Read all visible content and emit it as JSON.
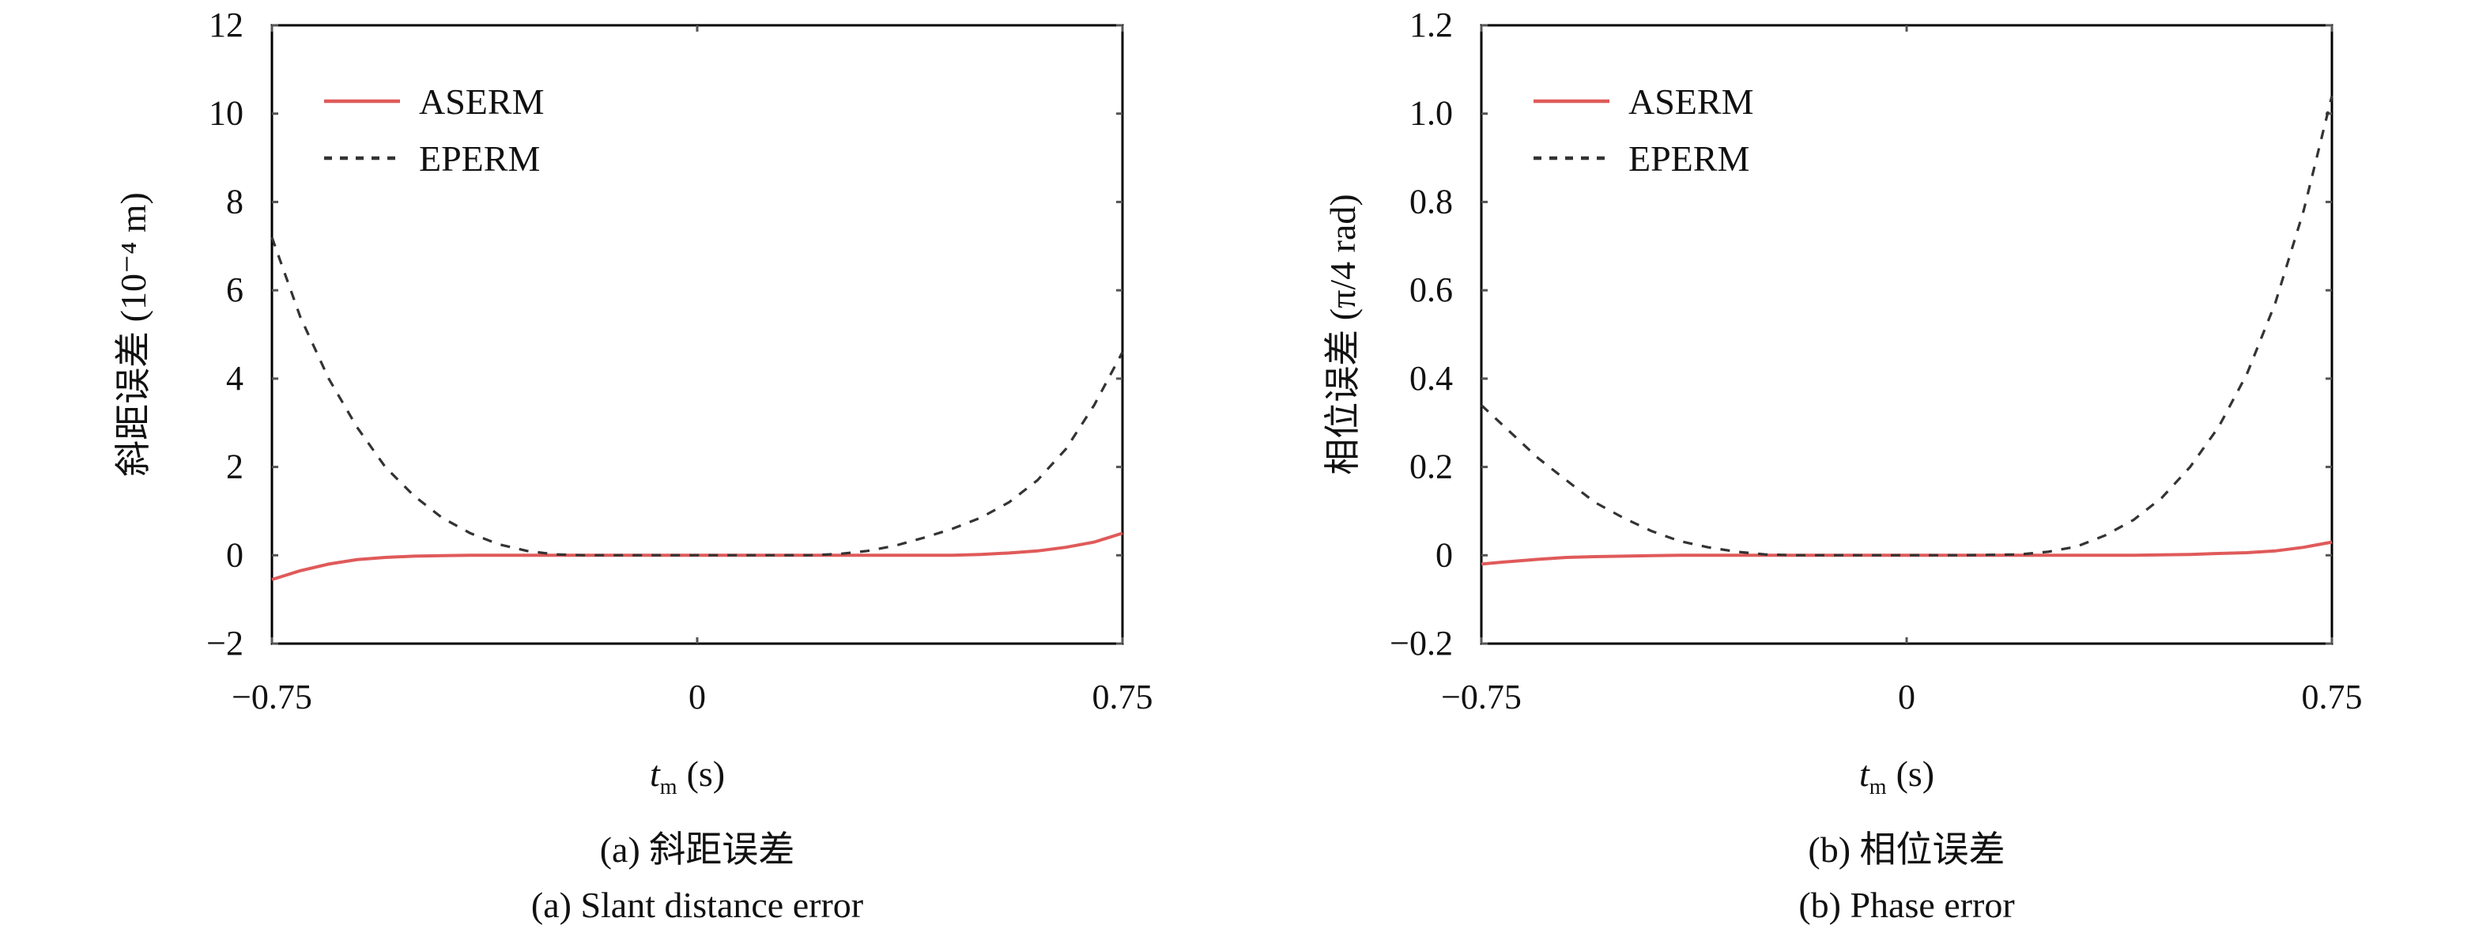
{
  "chart_data": [
    {
      "type": "line",
      "title": "",
      "caption_cn": "(a) 斜距误差",
      "caption_en": "(a) Slant distance error",
      "xlabel_var": "t",
      "xlabel_sub": "m",
      "xlabel_unit": "(s)",
      "ylabel": "斜距误差 (10⁻⁴ m)",
      "xlim": [
        -0.75,
        0.75
      ],
      "ylim": [
        -2,
        12
      ],
      "xticks": [
        -0.75,
        0,
        0.75
      ],
      "xtick_labels": [
        "−0.75",
        "0",
        "0.75"
      ],
      "yticks": [
        -2,
        0,
        2,
        4,
        6,
        8,
        10,
        12
      ],
      "ytick_labels": [
        "−2",
        "0",
        "2",
        "4",
        "6",
        "8",
        "10",
        "12"
      ],
      "legend_placement": "top-left",
      "x": [
        -0.75,
        -0.7,
        -0.65,
        -0.6,
        -0.55,
        -0.5,
        -0.45,
        -0.4,
        -0.35,
        -0.3,
        -0.25,
        -0.2,
        -0.1,
        0,
        0.1,
        0.2,
        0.25,
        0.3,
        0.35,
        0.4,
        0.45,
        0.5,
        0.55,
        0.6,
        0.65,
        0.7,
        0.75
      ],
      "series": [
        {
          "name": "ASERM",
          "color": "#e05a5a",
          "style": "solid",
          "values": [
            -0.55,
            -0.35,
            -0.2,
            -0.1,
            -0.05,
            -0.02,
            -0.01,
            0,
            0,
            0,
            0,
            0,
            0,
            0,
            0,
            0,
            0,
            0,
            0,
            0,
            0,
            0.02,
            0.05,
            0.1,
            0.18,
            0.3,
            0.5
          ]
        },
        {
          "name": "EPERM",
          "color": "#333333",
          "style": "dashed",
          "values": [
            7.2,
            5.4,
            4.0,
            2.9,
            2.0,
            1.35,
            0.85,
            0.5,
            0.25,
            0.1,
            0.02,
            0,
            0,
            0,
            0,
            0,
            0.03,
            0.1,
            0.22,
            0.4,
            0.6,
            0.85,
            1.2,
            1.7,
            2.4,
            3.4,
            4.6
          ]
        }
      ]
    },
    {
      "type": "line",
      "title": "",
      "caption_cn": "(b) 相位误差",
      "caption_en": "(b) Phase error",
      "xlabel_var": "t",
      "xlabel_sub": "m",
      "xlabel_unit": "(s)",
      "ylabel": "相位误差 (π/4 rad)",
      "xlim": [
        -0.75,
        0.75
      ],
      "ylim": [
        -0.2,
        1.2
      ],
      "xticks": [
        -0.75,
        0,
        0.75
      ],
      "xtick_labels": [
        "−0.75",
        "0",
        "0.75"
      ],
      "yticks": [
        -0.2,
        0,
        0.2,
        0.4,
        0.6,
        0.8,
        1.0,
        1.2
      ],
      "ytick_labels": [
        "−0.2",
        "0",
        "0.2",
        "0.4",
        "0.6",
        "0.8",
        "1.0",
        "1.2"
      ],
      "legend_placement": "top-left",
      "x": [
        -0.75,
        -0.7,
        -0.65,
        -0.6,
        -0.55,
        -0.5,
        -0.45,
        -0.4,
        -0.35,
        -0.3,
        -0.25,
        -0.2,
        -0.1,
        0,
        0.1,
        0.2,
        0.25,
        0.3,
        0.35,
        0.4,
        0.45,
        0.5,
        0.55,
        0.6,
        0.65,
        0.7,
        0.75
      ],
      "series": [
        {
          "name": "ASERM",
          "color": "#e05a5a",
          "style": "solid",
          "values": [
            -0.02,
            -0.014,
            -0.009,
            -0.005,
            -0.003,
            -0.002,
            -0.001,
            0,
            0,
            0,
            0,
            0,
            0,
            0,
            0,
            0,
            0,
            0,
            0,
            0,
            0.001,
            0.002,
            0.004,
            0.006,
            0.01,
            0.018,
            0.03
          ]
        },
        {
          "name": "EPERM",
          "color": "#333333",
          "style": "dashed",
          "values": [
            0.34,
            0.28,
            0.22,
            0.17,
            0.12,
            0.085,
            0.055,
            0.032,
            0.018,
            0.008,
            0.002,
            0,
            0,
            0,
            0,
            0.002,
            0.008,
            0.02,
            0.045,
            0.08,
            0.13,
            0.2,
            0.29,
            0.41,
            0.57,
            0.78,
            1.04
          ]
        }
      ]
    }
  ]
}
